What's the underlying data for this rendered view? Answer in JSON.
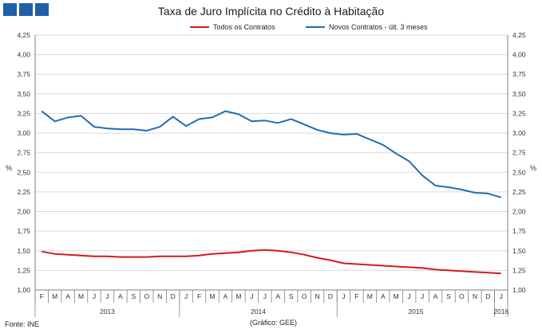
{
  "header": {
    "title": "Taxa de Juro Implícita no Crédito à Habitação"
  },
  "footer": {
    "source": "Fonte: INE",
    "credit": "(Gráfico:  GEE)"
  },
  "colors": {
    "series_red": "#d7191c",
    "series_blue": "#1f6db5",
    "logo": "#1f5fa6"
  },
  "chart_data": {
    "type": "line",
    "title": "Taxa de Juro Implícita no Crédito à Habitação",
    "ylabel_left": "%",
    "ylabel_right": "%",
    "ylim": [
      1.0,
      4.25
    ],
    "yticks": [
      "1,00",
      "1,25",
      "1,50",
      "1,75",
      "2,00",
      "2,25",
      "2,50",
      "2,75",
      "3,00",
      "3,25",
      "3,50",
      "3,75",
      "4,00",
      "4,25"
    ],
    "x": [
      "F",
      "M",
      "A",
      "M",
      "J",
      "J",
      "A",
      "S",
      "O",
      "N",
      "D",
      "J",
      "F",
      "M",
      "A",
      "M",
      "J",
      "J",
      "A",
      "S",
      "O",
      "N",
      "D",
      "J",
      "F",
      "M",
      "A",
      "M",
      "J",
      "J",
      "A",
      "S",
      "O",
      "N",
      "D",
      "J"
    ],
    "year_labels": [
      "2013",
      "2014",
      "2015",
      "2016"
    ],
    "legend_position": "top",
    "series": [
      {
        "name": "Todos os Contratos",
        "color": "#d7191c",
        "values": [
          1.49,
          1.46,
          1.45,
          1.44,
          1.43,
          1.43,
          1.42,
          1.42,
          1.42,
          1.43,
          1.43,
          1.43,
          1.44,
          1.46,
          1.47,
          1.48,
          1.5,
          1.51,
          1.5,
          1.48,
          1.45,
          1.41,
          1.38,
          1.34,
          1.33,
          1.32,
          1.31,
          1.3,
          1.29,
          1.28,
          1.26,
          1.25,
          1.24,
          1.23,
          1.22,
          1.21
        ]
      },
      {
        "name": "Novos Contratos - últ. 3 meses",
        "color": "#1f6db5",
        "values": [
          3.28,
          3.15,
          3.2,
          3.22,
          3.08,
          3.06,
          3.05,
          3.05,
          3.03,
          3.08,
          3.21,
          3.09,
          3.18,
          3.2,
          3.28,
          3.24,
          3.15,
          3.16,
          3.13,
          3.18,
          3.11,
          3.04,
          3.0,
          2.98,
          2.99,
          2.92,
          2.85,
          2.74,
          2.64,
          2.46,
          2.33,
          2.31,
          2.28,
          2.24,
          2.23,
          2.18
        ]
      }
    ]
  }
}
